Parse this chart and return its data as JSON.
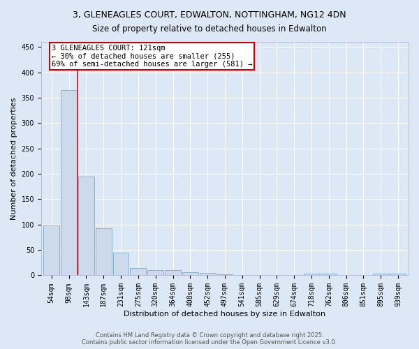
{
  "title_line1": "3, GLENEAGLES COURT, EDWALTON, NOTTINGHAM, NG12 4DN",
  "title_line2": "Size of property relative to detached houses in Edwalton",
  "xlabel": "Distribution of detached houses by size in Edwalton",
  "ylabel": "Number of detached properties",
  "footnote1": "Contains HM Land Registry data © Crown copyright and database right 2025.",
  "footnote2": "Contains public sector information licensed under the Open Government Licence v3.0.",
  "categories": [
    "54sqm",
    "98sqm",
    "143sqm",
    "187sqm",
    "231sqm",
    "275sqm",
    "320sqm",
    "364sqm",
    "408sqm",
    "452sqm",
    "497sqm",
    "541sqm",
    "585sqm",
    "629sqm",
    "674sqm",
    "718sqm",
    "762sqm",
    "806sqm",
    "851sqm",
    "895sqm",
    "939sqm"
  ],
  "values": [
    98,
    365,
    195,
    93,
    45,
    14,
    10,
    10,
    6,
    5,
    2,
    1,
    1,
    0,
    0,
    4,
    4,
    0,
    0,
    3,
    3
  ],
  "bar_color": "#ccdaeb",
  "bar_edge_color": "#7faacb",
  "red_line_x": 1.5,
  "annotation_line1": "3 GLENEAGLES COURT: 121sqm",
  "annotation_line2": "← 30% of detached houses are smaller (255)",
  "annotation_line3": "69% of semi-detached houses are larger (581) →",
  "annotation_box_facecolor": "#ffffff",
  "annotation_box_edgecolor": "#cc0000",
  "ylim": [
    0,
    460
  ],
  "yticks": [
    0,
    50,
    100,
    150,
    200,
    250,
    300,
    350,
    400,
    450
  ],
  "background_color": "#dce8f5",
  "grid_color": "#ffffff",
  "title_fontsize": 9,
  "ylabel_fontsize": 8,
  "xlabel_fontsize": 8,
  "tick_fontsize": 7,
  "footnote_fontsize": 6,
  "annotation_fontsize": 7.5
}
